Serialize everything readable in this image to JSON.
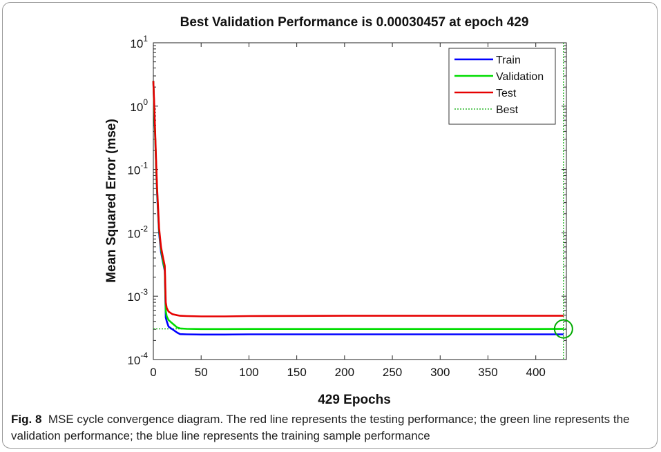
{
  "caption": {
    "label": "Fig. 8",
    "text": "MSE cycle convergence diagram. The red line represents the testing performance; the green line represents the validation performance; the blue line represents the training sample performance"
  },
  "chart_data": {
    "type": "line",
    "title": "Best Validation Performance is 0.00030457 at epoch 429",
    "xlabel": "429 Epochs",
    "ylabel": "Mean Squared Error (mse)",
    "xlim": [
      0,
      432
    ],
    "ylim": [
      0.0001,
      10
    ],
    "yscale": "log",
    "xticks": [
      0,
      50,
      100,
      150,
      200,
      250,
      300,
      350,
      400
    ],
    "yticks": [
      {
        "base": "10",
        "exp": "-4",
        "value": 0.0001
      },
      {
        "base": "10",
        "exp": "-3",
        "value": 0.001
      },
      {
        "base": "10",
        "exp": "-2",
        "value": 0.01
      },
      {
        "base": "10",
        "exp": "-1",
        "value": 0.1
      },
      {
        "base": "10",
        "exp": "0",
        "value": 1
      },
      {
        "base": "10",
        "exp": "1",
        "value": 10
      }
    ],
    "legend_position": "top-right",
    "series": [
      {
        "name": "Train",
        "color": "#0000ff",
        "x": [
          0,
          1,
          2,
          3,
          4,
          5,
          6,
          8,
          10,
          12,
          13,
          14,
          16,
          20,
          25,
          28,
          35,
          50,
          75,
          100,
          150,
          200,
          300,
          400,
          429
        ],
        "y": [
          2.5,
          0.8,
          0.3,
          0.1,
          0.04,
          0.02,
          0.01,
          0.005,
          0.0035,
          0.0025,
          0.00046,
          0.0004,
          0.00033,
          0.0003,
          0.000265,
          0.000252,
          0.00025,
          0.000248,
          0.000248,
          0.00025,
          0.00025,
          0.00025,
          0.00025,
          0.00025,
          0.00025
        ]
      },
      {
        "name": "Validation",
        "color": "#00dd00",
        "x": [
          0,
          1,
          2,
          3,
          4,
          5,
          6,
          8,
          10,
          12,
          13,
          14,
          16,
          20,
          25,
          28,
          35,
          50,
          75,
          100,
          150,
          200,
          300,
          400,
          429
        ],
        "y": [
          2.5,
          0.8,
          0.3,
          0.1,
          0.045,
          0.022,
          0.011,
          0.0055,
          0.0037,
          0.0026,
          0.00058,
          0.00048,
          0.00042,
          0.00037,
          0.00032,
          0.00031,
          0.000305,
          0.000303,
          0.000303,
          0.000304,
          0.000304,
          0.000304,
          0.000304,
          0.000304,
          0.00030457
        ]
      },
      {
        "name": "Test",
        "color": "#e60000",
        "x": [
          0,
          1,
          2,
          3,
          4,
          5,
          6,
          8,
          10,
          12,
          13,
          14,
          16,
          20,
          25,
          28,
          35,
          50,
          75,
          100,
          150,
          200,
          300,
          400,
          429
        ],
        "y": [
          2.5,
          1.0,
          0.35,
          0.12,
          0.05,
          0.025,
          0.012,
          0.006,
          0.0042,
          0.003,
          0.0008,
          0.00065,
          0.00057,
          0.00052,
          0.0005,
          0.00049,
          0.000485,
          0.00048,
          0.00048,
          0.000485,
          0.000488,
          0.00049,
          0.00049,
          0.00049,
          0.00049
        ]
      }
    ],
    "best": {
      "name": "Best",
      "color": "#00aa00",
      "epoch": 429,
      "value": 0.00030457
    }
  }
}
